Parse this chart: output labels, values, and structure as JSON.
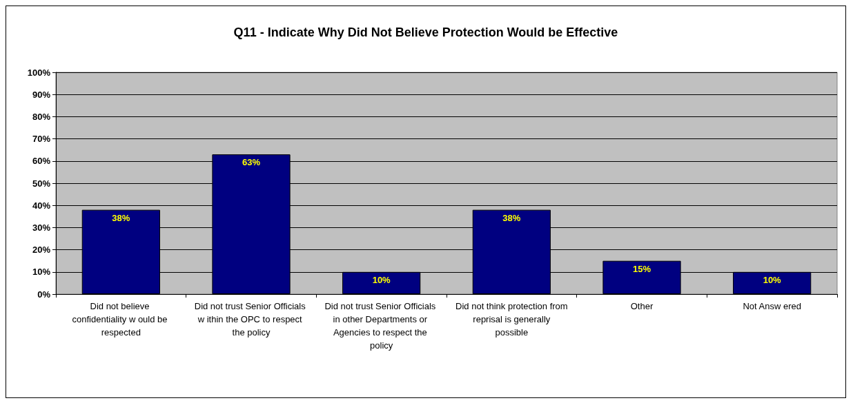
{
  "chart_data": {
    "type": "bar",
    "title": "Q11 - Indicate Why Did Not Believe Protection Would be Effective",
    "categories": [
      "Did not believe confidentiality w ould be respected",
      "Did not trust Senior Officials w ithin the OPC to respect the policy",
      "Did not trust Senior Officials in other Departments or Agencies to respect the policy",
      "Did not think protection from reprisal is generally possible",
      "Other",
      "Not Answ ered"
    ],
    "values": [
      38,
      63,
      10,
      38,
      15,
      10
    ],
    "value_labels": [
      "38%",
      "63%",
      "10%",
      "38%",
      "15%",
      "10%"
    ],
    "color": "#000080",
    "ylim": [
      0,
      100
    ],
    "yticks": [
      {
        "value": 0,
        "label": "0%"
      },
      {
        "value": 10,
        "label": "10%"
      },
      {
        "value": 20,
        "label": "20%"
      },
      {
        "value": 30,
        "label": "30%"
      },
      {
        "value": 40,
        "label": "40%"
      },
      {
        "value": 50,
        "label": "50%"
      },
      {
        "value": 60,
        "label": "60%"
      },
      {
        "value": 70,
        "label": "70%"
      },
      {
        "value": 80,
        "label": "80%"
      },
      {
        "value": 90,
        "label": "90%"
      },
      {
        "value": 100,
        "label": "100%"
      }
    ],
    "grid": "y"
  }
}
